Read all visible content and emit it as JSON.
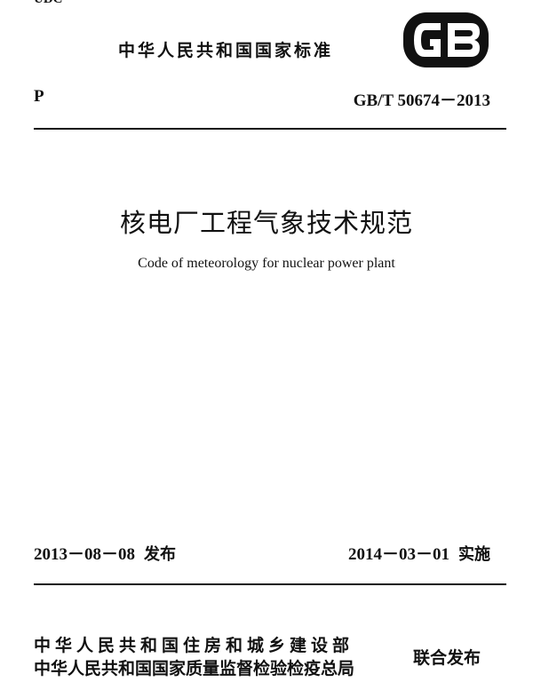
{
  "header": {
    "udc": "UDC",
    "standard_type": "中华人民共和国国家标准",
    "logo_text": "GB",
    "classification": "P",
    "standard_code": "GB/T 50674－2013"
  },
  "title": {
    "chinese": "核电厂工程气象技术规范",
    "english": "Code of meteorology for nuclear power plant"
  },
  "dates": {
    "issue_date": "2013－08－08",
    "issue_label": "发布",
    "implement_date": "2014－03－01",
    "implement_label": "实施"
  },
  "publishers": {
    "line1": "中华人民共和国住房和城乡建设部",
    "line2": "中华人民共和国国家质量监督检验检疫总局",
    "joint_label": "联合发布"
  }
}
